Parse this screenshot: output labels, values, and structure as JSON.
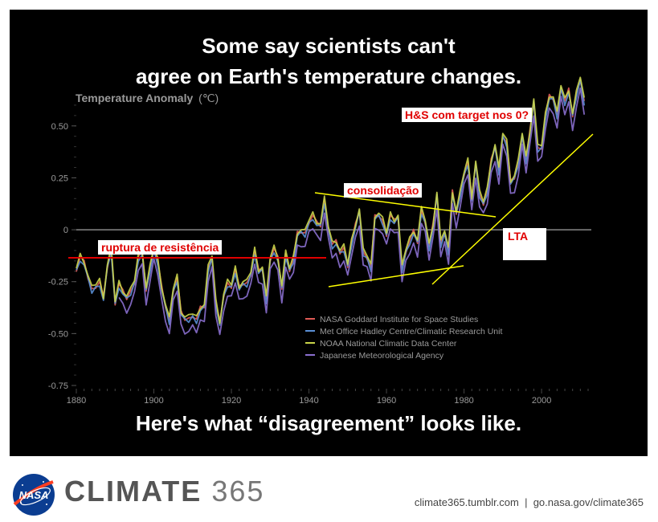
{
  "headline": {
    "line1": "Some say scientists can't",
    "line2": "agree on Earth's temperature changes."
  },
  "footline": "Here's what “disagreement” looks like.",
  "annotations": {
    "top_right": "H&S com target nos 0?",
    "consolidation": "consolidação",
    "resistance": "ruptura de resistência",
    "trend": "LTA"
  },
  "brand": {
    "word": "CLIMATE",
    "number": "365"
  },
  "links": "climate365.tumblr.com  |  go.nasa.gov/climate365",
  "chart_data": {
    "type": "line",
    "ylabel": "Temperature Anomaly",
    "yunit": "(℃)",
    "xlim": [
      1880,
      2012
    ],
    "ylim": [
      -0.75,
      0.65
    ],
    "xticks": [
      1880,
      1900,
      1920,
      1940,
      1960,
      1980,
      2000
    ],
    "yticks": [
      0.5,
      0.25,
      0,
      -0.25,
      -0.5,
      -0.75
    ],
    "ytick_labels": [
      "0.50",
      "0.25",
      "0",
      "-0.25",
      "-0.50",
      "-0.75"
    ],
    "legend_position": "bottom-right",
    "series": [
      {
        "name": "NASA Goddard Institute for Space Studies",
        "color": "#e05a55",
        "offset": 0.01,
        "start": 1880
      },
      {
        "name": "Met Office Hadley Centre/Climatic Research Unit",
        "color": "#5a8fd6",
        "offset": 0.0,
        "start": 1880
      },
      {
        "name": "NOAA National Climatic Data Center",
        "color": "#c9d449",
        "offset": 0.02,
        "start": 1880
      },
      {
        "name": "Japanese Meteorological Agency",
        "color": "#8a6fcf",
        "offset": -0.05,
        "start": 1891
      }
    ],
    "x": [
      1880,
      1881,
      1882,
      1883,
      1884,
      1885,
      1886,
      1887,
      1888,
      1889,
      1890,
      1891,
      1892,
      1893,
      1894,
      1895,
      1896,
      1897,
      1898,
      1899,
      1900,
      1901,
      1902,
      1903,
      1904,
      1905,
      1906,
      1907,
      1908,
      1909,
      1910,
      1911,
      1912,
      1913,
      1914,
      1915,
      1916,
      1917,
      1918,
      1919,
      1920,
      1921,
      1922,
      1923,
      1924,
      1925,
      1926,
      1927,
      1928,
      1929,
      1930,
      1931,
      1932,
      1933,
      1934,
      1935,
      1936,
      1937,
      1938,
      1939,
      1940,
      1941,
      1942,
      1943,
      1944,
      1945,
      1946,
      1947,
      1948,
      1949,
      1950,
      1951,
      1952,
      1953,
      1954,
      1955,
      1956,
      1957,
      1958,
      1959,
      1960,
      1961,
      1962,
      1963,
      1964,
      1965,
      1966,
      1967,
      1968,
      1969,
      1970,
      1971,
      1972,
      1973,
      1974,
      1975,
      1976,
      1977,
      1978,
      1979,
      1980,
      1981,
      1982,
      1983,
      1984,
      1985,
      1986,
      1987,
      1988,
      1989,
      1990,
      1991,
      1992,
      1993,
      1994,
      1995,
      1996,
      1997,
      1998,
      1999,
      2000,
      2001,
      2002,
      2003,
      2004,
      2005,
      2006,
      2007,
      2008,
      2009,
      2010,
      2011
    ],
    "values": [
      -0.2,
      -0.14,
      -0.17,
      -0.24,
      -0.3,
      -0.28,
      -0.26,
      -0.34,
      -0.19,
      -0.11,
      -0.36,
      -0.27,
      -0.31,
      -0.34,
      -0.31,
      -0.26,
      -0.14,
      -0.12,
      -0.3,
      -0.2,
      -0.1,
      -0.16,
      -0.29,
      -0.38,
      -0.45,
      -0.3,
      -0.24,
      -0.41,
      -0.44,
      -0.44,
      -0.42,
      -0.44,
      -0.39,
      -0.38,
      -0.2,
      -0.14,
      -0.36,
      -0.46,
      -0.33,
      -0.27,
      -0.28,
      -0.2,
      -0.29,
      -0.27,
      -0.27,
      -0.22,
      -0.11,
      -0.21,
      -0.2,
      -0.35,
      -0.15,
      -0.1,
      -0.15,
      -0.29,
      -0.13,
      -0.2,
      -0.15,
      -0.03,
      -0.02,
      -0.03,
      0.03,
      0.06,
      0.02,
      0.01,
      0.13,
      0.0,
      -0.08,
      -0.07,
      -0.12,
      -0.1,
      -0.18,
      -0.07,
      0.01,
      0.08,
      -0.12,
      -0.14,
      -0.19,
      0.05,
      0.06,
      0.03,
      -0.03,
      0.06,
      0.03,
      0.05,
      -0.2,
      -0.11,
      -0.06,
      -0.02,
      -0.07,
      0.08,
      0.03,
      -0.09,
      0.01,
      0.16,
      -0.08,
      -0.02,
      -0.11,
      0.17,
      0.07,
      0.16,
      0.26,
      0.32,
      0.14,
      0.31,
      0.16,
      0.12,
      0.18,
      0.32,
      0.39,
      0.27,
      0.45,
      0.41,
      0.22,
      0.24,
      0.31,
      0.45,
      0.33,
      0.46,
      0.61,
      0.38,
      0.39,
      0.54,
      0.63,
      0.62,
      0.54,
      0.68,
      0.61,
      0.66,
      0.54,
      0.64,
      0.72,
      0.61
    ]
  }
}
